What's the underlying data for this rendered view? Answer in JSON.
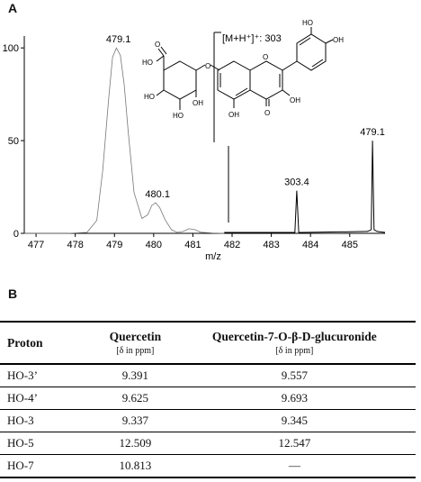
{
  "panels": {
    "a": "A",
    "b": "B"
  },
  "spectrum": {
    "annotation": "[M+H⁺]⁺: 303",
    "chart_data": {
      "type": "line",
      "xlabel": "m/z",
      "xlim": [
        476.7,
        485.9
      ],
      "ylim": [
        0,
        103
      ],
      "x_ticks": [
        477,
        478,
        479,
        480,
        481,
        482,
        483,
        484,
        485
      ],
      "y_ticks": [
        0,
        50,
        100
      ],
      "series": [
        {
          "x": [
            476.7,
            477.8,
            478.3,
            478.55,
            478.7,
            478.85,
            478.95,
            479.05,
            479.15,
            479.25,
            479.35,
            479.5,
            479.7,
            479.85,
            479.95,
            480.05,
            480.15,
            480.3,
            480.45,
            480.6,
            480.75,
            480.9,
            481.05,
            481.2,
            481.5,
            481.8
          ],
          "y": [
            0,
            0,
            0.5,
            7,
            34,
            72,
            95,
            100,
            96,
            80,
            55,
            22,
            8,
            10,
            15,
            16.5,
            14,
            7,
            2,
            0.5,
            1,
            2.5,
            2,
            0.6,
            0.2,
            0
          ]
        },
        {
          "x": [
            481.8,
            483.5,
            483.6,
            483.65,
            483.7,
            483.8,
            485.45,
            485.55,
            485.58,
            485.62,
            485.7,
            485.9
          ],
          "y": [
            0.5,
            0.5,
            0.5,
            23,
            0.5,
            0.5,
            1,
            2,
            50,
            2,
            1,
            0.5
          ]
        }
      ],
      "peak_labels": [
        {
          "x": 479.1,
          "y": 100,
          "label": "479.1"
        },
        {
          "x": 480.1,
          "y": 16.5,
          "label": "480.1"
        },
        {
          "x": 483.65,
          "y": 23,
          "label": "303.4"
        },
        {
          "x": 485.58,
          "y": 50,
          "label": "479.1"
        }
      ]
    }
  },
  "molecule": {
    "atoms": [
      "O",
      "HO",
      "HO",
      "HO",
      "O",
      "OH",
      "HO",
      "OH",
      "OH",
      "OH",
      "O",
      "O"
    ]
  },
  "table": {
    "headers": [
      {
        "main": "Proton",
        "sub": ""
      },
      {
        "main": "Quercetin",
        "sub": "[δ in ppm]"
      },
      {
        "main": "Quercetin-7-O-β-D-glucuronide",
        "sub": "[δ in ppm]"
      }
    ],
    "rows": [
      [
        "HO-3’",
        "9.391",
        "9.557"
      ],
      [
        "HO-4’",
        "9.625",
        "9.693"
      ],
      [
        "HO-3",
        "9.337",
        "9.345"
      ],
      [
        "HO-5",
        "12.509",
        "12.547"
      ],
      [
        "HO-7",
        "10.813",
        "—"
      ]
    ]
  }
}
